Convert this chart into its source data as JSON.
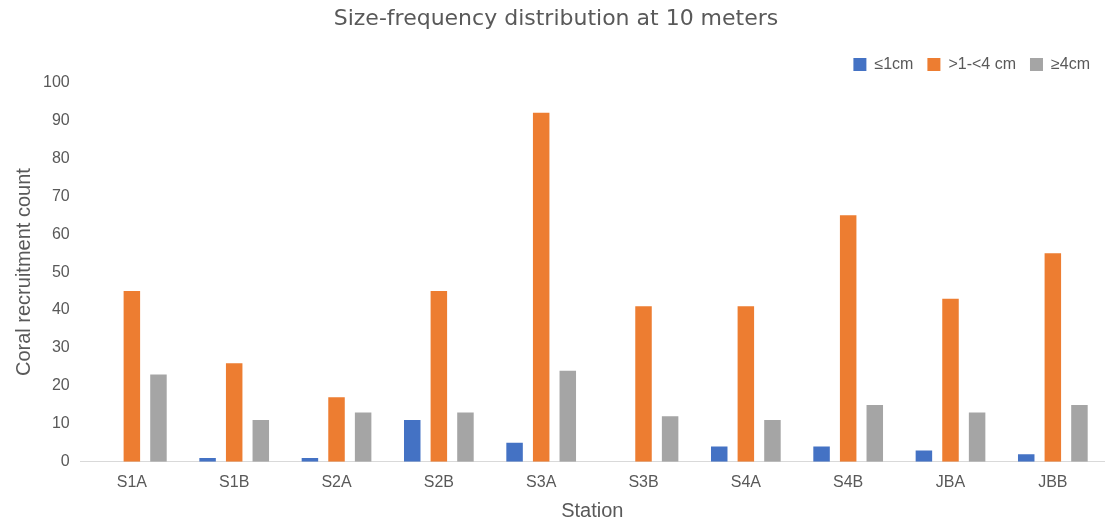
{
  "chart_data": {
    "type": "bar",
    "title": "Size-frequency distribution at 10 meters",
    "xlabel": "Station",
    "ylabel": "Coral recruitment count",
    "categories": [
      "S1A",
      "S1B",
      "S2A",
      "S2B",
      "S3A",
      "S3B",
      "S4A",
      "S4B",
      "JBA",
      "JBB"
    ],
    "series": [
      {
        "name": "≤1cm",
        "color": "#4472c4",
        "values": [
          0,
          1,
          1,
          11,
          5,
          0,
          4,
          4,
          3,
          2
        ]
      },
      {
        "name": ">1-<4 cm",
        "color": "#ed7d31",
        "values": [
          45,
          26,
          17,
          45,
          92,
          41,
          41,
          65,
          43,
          55
        ]
      },
      {
        "name": "≥4cm",
        "color": "#a5a5a5",
        "values": [
          23,
          11,
          13,
          13,
          24,
          12,
          11,
          15,
          13,
          15
        ]
      }
    ],
    "ylim": [
      0,
      100
    ],
    "yticks": [
      0,
      10,
      20,
      30,
      40,
      50,
      60,
      70,
      80,
      90,
      100
    ],
    "grid": false,
    "legend": "top right"
  }
}
